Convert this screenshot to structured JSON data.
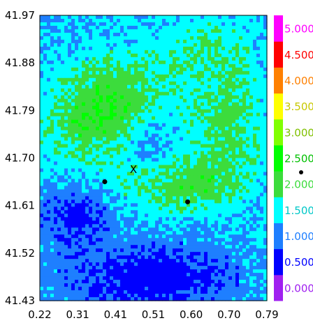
{
  "chart_data": {
    "type": "heatmap",
    "title": "",
    "xlabel": "",
    "ylabel": "",
    "x_ticks": [
      "0.22",
      "0.31",
      "0.41",
      "0.51",
      "0.60",
      "0.70",
      "0.79"
    ],
    "y_ticks": [
      "41.97",
      "41.88",
      "41.79",
      "41.70",
      "41.61",
      "41.52",
      "41.43"
    ],
    "xlim": [
      0.22,
      0.79
    ],
    "ylim": [
      41.43,
      41.97
    ],
    "colorbar": {
      "labels": [
        "0.000",
        "0.500",
        "1.000",
        "1.500",
        "2.000",
        "2.500",
        "3.000",
        "3.500",
        "4.000",
        "4.500",
        "5.000"
      ],
      "colors": [
        "#a020f0",
        "#0000ff",
        "#1e7fff",
        "#00ffff",
        "#3cdc3c",
        "#00ff00",
        "#80ff00",
        "#ffff00",
        "#ff8000",
        "#ff0000",
        "#ff00ff"
      ],
      "label_colors": [
        "#a020f0",
        "#0000ff",
        "#1e7fff",
        "#00c8c8",
        "#3cdc3c",
        "#00c000",
        "#80c000",
        "#c8c800",
        "#ff8000",
        "#ff0000",
        "#ff00ff"
      ],
      "range": [
        -0.25,
        5.25
      ]
    },
    "level_colors": [
      "#0000ff",
      "#1e7fff",
      "#00ffff",
      "#3cdc3c",
      "#00ff00",
      "#80ff00"
    ],
    "markers": [
      {
        "type": "dot",
        "x": 0.383,
        "y": 41.655
      },
      {
        "type": "dot",
        "x": 0.591,
        "y": 41.617
      },
      {
        "type": "x",
        "label": "X",
        "x": 0.455,
        "y": 41.677
      }
    ]
  }
}
